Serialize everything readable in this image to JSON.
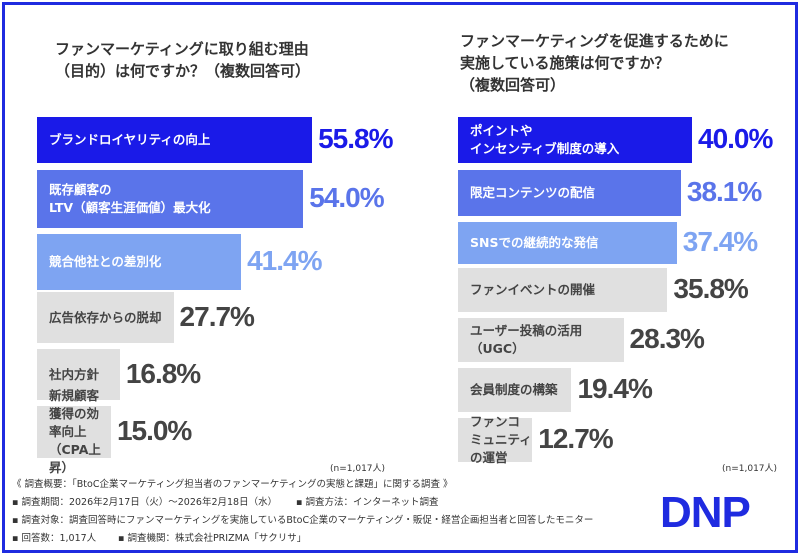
{
  "chart_data": [
    {
      "type": "bar",
      "orientation": "horizontal",
      "title": "ファンマーケティングに取り組む理由\n（目的）は何ですか？（複数回答可）",
      "categories": [
        "ブランドロイヤリティの向上",
        "既存顧客の\nLTV（顧客生涯価値）最大化",
        "競合他社との差別化",
        "広告依存からの脱却",
        "社内方針",
        "新規顧客獲得の効率向上（CPA上昇）"
      ],
      "values": [
        55.8,
        54.0,
        41.4,
        27.7,
        16.8,
        15.0
      ],
      "labels": [
        "55.8%",
        "54.0%",
        "41.4%",
        "27.7%",
        "16.8%",
        "15.0%"
      ],
      "note": "(n=1,017人)"
    },
    {
      "type": "bar",
      "orientation": "horizontal",
      "title": "ファンマーケティングを促進するために\n実施している施策は何ですか？\n（複数回答可）",
      "categories": [
        "ポイントや\nインセンティブ制度の導入",
        "限定コンテンツの配信",
        "SNSでの継続的な発信",
        "ファンイベントの開催",
        "ユーザー投稿の活用（UGC）",
        "会員制度の構築",
        "ファンコミュニティの運営"
      ],
      "values": [
        40.0,
        38.1,
        37.4,
        35.8,
        28.3,
        19.4,
        12.7
      ],
      "labels": [
        "40.0%",
        "38.1%",
        "37.4%",
        "35.8%",
        "28.3%",
        "19.4%",
        "12.7%"
      ],
      "note": "(n=1,017人)"
    }
  ],
  "colors": {
    "top1": "#1a1ae8",
    "top2": "#5a74ea",
    "top3": "#7ea4f2",
    "other": "#e0e0e0",
    "border": "#1f2be0"
  },
  "footer": {
    "line1": "《 調査概要：「BtoC企業マーケティング担当者のファンマーケティングの実態と課題」に関する調査 》",
    "line2a": "▪ 調査期間：2026年2月17日（火）～2026年2月18日（水）",
    "line2b": "▪ 調査方法：インターネット調査",
    "line3": "▪ 調査対象：調査回答時にファンマーケティングを実施しているBtoC企業のマーケティング・販促・経営企画担当者と回答したモニター",
    "line4a": "▪ 回答数：1,017人",
    "line4b": "▪ 調査機関：株式会社PRIZMA「サクリサ」"
  },
  "logo": "DNP"
}
